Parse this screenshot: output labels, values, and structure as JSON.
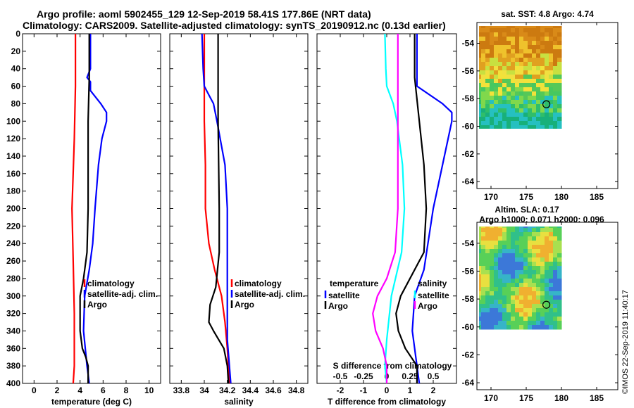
{
  "header": {
    "line1": "Argo profile: aoml 5902455_129 12-Sep-2019 58.41S 177.86E (NRT data)",
    "line2": "Climatology: CARS2009. Satellite-adjusted climatology: synTS_20190912.nc (0.13d earlier)"
  },
  "watermark": "©IMOS 22-Sep-2019 11:40:17",
  "colors": {
    "climatology": "#ff0000",
    "satellite": "#0000ff",
    "argo": "#000000",
    "sat_diff_S": "#00ffff",
    "clim_diff_S": "#ff00ff"
  },
  "chart_data": [
    {
      "type": "line",
      "id": "temperature",
      "xlabel": "temperature (deg C)",
      "xlim": [
        -1,
        11
      ],
      "xticks": [
        0,
        2,
        4,
        6,
        8,
        10
      ],
      "xtick_labels": [
        "0",
        "2",
        "4",
        "6",
        "8",
        "10"
      ],
      "ylim": [
        400,
        0
      ],
      "yticks": [
        0,
        20,
        40,
        60,
        80,
        100,
        120,
        140,
        160,
        180,
        200,
        220,
        240,
        260,
        280,
        300,
        320,
        340,
        360,
        380,
        400
      ],
      "ytick_labels": [
        "0",
        "20",
        "40",
        "60",
        "80",
        "100",
        "120",
        "140",
        "160",
        "180",
        "200",
        "220",
        "240",
        "260",
        "280",
        "300",
        "320",
        "340",
        "360",
        "380",
        "400"
      ],
      "legend": [
        "climatology",
        "satellite-adj. clim.",
        "Argo"
      ],
      "series": [
        {
          "name": "climatology",
          "color": "#ff0000",
          "y": [
            0,
            60,
            120,
            200,
            260,
            320,
            380,
            400
          ],
          "x": [
            3.6,
            3.6,
            3.5,
            3.3,
            3.4,
            3.5,
            3.5,
            3.4
          ]
        },
        {
          "name": "satellite-adj. clim.",
          "color": "#0000ff",
          "y": [
            0,
            40,
            50,
            55,
            65,
            80,
            90,
            100,
            120,
            150,
            200,
            240,
            270,
            300,
            340,
            380,
            400
          ],
          "x": [
            4.9,
            4.9,
            4.6,
            4.9,
            4.9,
            5.8,
            6.3,
            6.3,
            5.9,
            5.6,
            5.3,
            5.1,
            4.8,
            4.4,
            4.3,
            4.6,
            4.8
          ]
        },
        {
          "name": "Argo",
          "color": "#000000",
          "y": [
            0,
            50,
            100,
            150,
            200,
            250,
            280,
            300,
            320,
            340,
            360,
            370,
            380,
            400
          ],
          "x": [
            4.8,
            4.8,
            4.7,
            4.7,
            4.7,
            4.6,
            4.3,
            4.0,
            4.0,
            4.0,
            4.2,
            4.5,
            4.7,
            4.7
          ]
        }
      ]
    },
    {
      "type": "line",
      "id": "salinity",
      "xlabel": "salinity",
      "xlim": [
        33.7,
        34.9
      ],
      "xticks": [
        33.8,
        34.0,
        34.2,
        34.4,
        34.6,
        34.8
      ],
      "xtick_labels": [
        "33.8",
        "34",
        "34.2",
        "34.4",
        "34.6",
        "34.8"
      ],
      "ylim": [
        400,
        0
      ],
      "legend": [
        "climatology",
        "satellite-adj. clim.",
        "Argo"
      ],
      "series": [
        {
          "name": "climatology",
          "color": "#ff0000",
          "y": [
            0,
            60,
            100,
            150,
            200,
            240,
            270,
            300,
            330,
            360,
            400
          ],
          "x": [
            34.0,
            34.0,
            34.0,
            34.01,
            34.01,
            34.04,
            34.09,
            34.15,
            34.18,
            34.2,
            34.22
          ]
        },
        {
          "name": "satellite-adj. clim.",
          "color": "#0000ff",
          "y": [
            0,
            40,
            60,
            70,
            80,
            100,
            150,
            200,
            250,
            300,
            350,
            400
          ],
          "x": [
            33.98,
            33.99,
            34.0,
            34.04,
            34.08,
            34.11,
            34.18,
            34.2,
            34.2,
            34.2,
            34.2,
            34.23
          ]
        },
        {
          "name": "Argo",
          "color": "#000000",
          "y": [
            0,
            100,
            200,
            250,
            290,
            310,
            330,
            340,
            360,
            380,
            400
          ],
          "x": [
            34.12,
            34.12,
            34.13,
            34.13,
            34.1,
            34.05,
            34.04,
            34.08,
            34.17,
            34.2,
            34.21
          ]
        }
      ]
    },
    {
      "type": "line",
      "id": "differences",
      "xlabel": "T difference from climatology",
      "xlim": [
        -3,
        3
      ],
      "xticks": [
        -2,
        -1,
        0,
        1,
        2
      ],
      "xtick_labels": [
        "-2",
        "-1",
        "0",
        "1",
        "2"
      ],
      "top_axis": {
        "label": "S difference from climatology",
        "ticks": [
          -0.5,
          -0.25,
          0,
          0.25,
          0.5
        ],
        "tick_labels": [
          "-0.5",
          "-0.25",
          "0",
          "0.25",
          "0.5"
        ]
      },
      "ylim": [
        400,
        0
      ],
      "legend_left": {
        "title": "temperature",
        "items": [
          "satellite",
          "Argo"
        ]
      },
      "legend_right": {
        "title": "salinity",
        "items": [
          "satellite",
          "Argo"
        ]
      },
      "series": [
        {
          "name": "T satellite",
          "color": "#0000ff",
          "y": [
            0,
            40,
            60,
            80,
            90,
            100,
            150,
            200,
            270,
            300,
            340,
            380,
            400
          ],
          "x": [
            1.3,
            1.3,
            1.3,
            2.4,
            2.8,
            2.8,
            2.4,
            2.0,
            1.6,
            1.2,
            1.1,
            1.3,
            1.4
          ]
        },
        {
          "name": "T Argo",
          "color": "#000000",
          "y": [
            0,
            50,
            100,
            150,
            200,
            250,
            300,
            320,
            340,
            360,
            380,
            400
          ],
          "x": [
            1.2,
            1.2,
            1.4,
            1.6,
            1.7,
            1.6,
            0.6,
            0.4,
            0.5,
            0.8,
            1.3,
            1.3
          ]
        },
        {
          "name": "S satellite",
          "color": "#00ffff",
          "y": [
            0,
            40,
            60,
            80,
            100,
            150,
            200,
            250,
            300,
            350,
            380,
            400
          ],
          "x": [
            -0.02,
            -0.01,
            0.0,
            0.07,
            0.11,
            0.17,
            0.19,
            0.16,
            0.05,
            0.0,
            -0.02,
            0.0
          ]
        },
        {
          "name": "S Argo",
          "color": "#ff00ff",
          "y": [
            0,
            60,
            100,
            150,
            200,
            250,
            280,
            300,
            320,
            340,
            360,
            380,
            400
          ],
          "x": [
            0.12,
            0.12,
            0.12,
            0.12,
            0.12,
            0.09,
            0.0,
            -0.1,
            -0.15,
            -0.12,
            -0.04,
            0.0,
            0.0
          ]
        }
      ]
    },
    {
      "type": "heatmap",
      "id": "sst-map",
      "title": "sat. SST: 4.8 Argo: 4.74",
      "xlim": [
        168,
        188
      ],
      "ylim": [
        -64.5,
        -52.5
      ],
      "data_extent": {
        "lon": [
          168,
          180
        ],
        "lat": [
          -60.1,
          -52.6
        ]
      },
      "xticks": [
        170,
        175,
        180,
        185
      ],
      "xtick_labels": [
        "170",
        "175",
        "180",
        "185"
      ],
      "yticks": [
        -54,
        -56,
        -58,
        -60,
        -62,
        -64
      ],
      "ytick_labels": [
        "-54",
        "-56",
        "-58",
        "-60",
        "-62",
        "-64"
      ],
      "argo_position": {
        "lon": 177.86,
        "lat": -58.41
      }
    },
    {
      "type": "heatmap",
      "id": "sla-map",
      "title": "Altim. SLA: 0.17",
      "subtitle": "Argo h1000: 0.071 h2000: 0.096",
      "xlim": [
        168,
        188
      ],
      "ylim": [
        -64.5,
        -52.5
      ],
      "data_extent": {
        "lon": [
          168,
          180
        ],
        "lat": [
          -60.1,
          -52.6
        ]
      },
      "xticks": [
        170,
        175,
        180,
        185
      ],
      "xtick_labels": [
        "170",
        "175",
        "180",
        "185"
      ],
      "yticks": [
        -54,
        -56,
        -58,
        -60,
        -62,
        -64
      ],
      "ytick_labels": [
        "-54",
        "-56",
        "-58",
        "-60",
        "-62",
        "-64"
      ],
      "argo_position": {
        "lon": 177.86,
        "lat": -58.41
      }
    }
  ]
}
